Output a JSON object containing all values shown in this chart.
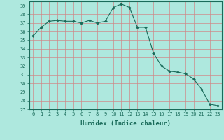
{
  "xlabel": "Humidex (Indice chaleur)",
  "x": [
    0,
    1,
    2,
    3,
    4,
    5,
    6,
    7,
    8,
    9,
    10,
    11,
    12,
    13,
    14,
    15,
    16,
    17,
    18,
    19,
    20,
    21,
    22,
    23
  ],
  "y": [
    35.5,
    36.5,
    37.2,
    37.3,
    37.2,
    37.2,
    37.0,
    37.3,
    37.0,
    37.2,
    38.8,
    39.2,
    38.8,
    36.5,
    36.5,
    33.5,
    32.0,
    31.4,
    31.3,
    31.1,
    30.5,
    29.3,
    27.6,
    27.4
  ],
  "line_color": "#1a6b5a",
  "marker": "D",
  "marker_size": 2.0,
  "bg_color": "#aee8de",
  "grid_color": "#d08888",
  "ylim": [
    27,
    39.5
  ],
  "yticks": [
    27,
    28,
    29,
    30,
    31,
    32,
    33,
    34,
    35,
    36,
    37,
    38,
    39
  ],
  "xlim": [
    -0.5,
    23.5
  ],
  "xticks": [
    0,
    1,
    2,
    3,
    4,
    5,
    6,
    7,
    8,
    9,
    10,
    11,
    12,
    13,
    14,
    15,
    16,
    17,
    18,
    19,
    20,
    21,
    22,
    23
  ],
  "tick_fontsize": 5.0,
  "xlabel_fontsize": 6.5,
  "tick_color": "#1a6b5a"
}
